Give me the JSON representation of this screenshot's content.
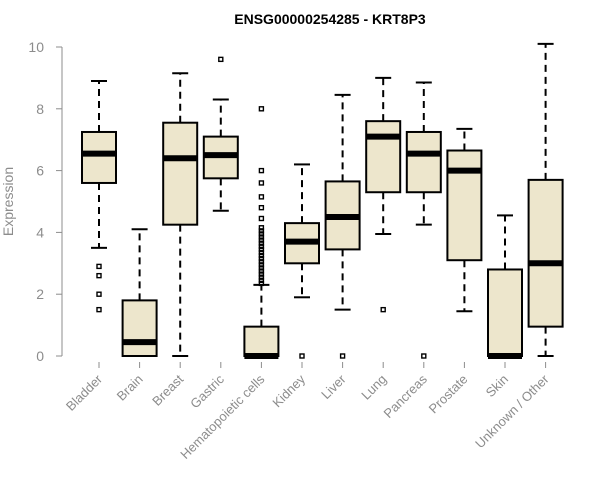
{
  "chart_data": {
    "type": "boxplot",
    "title": "ENSG00000254285 - KRT8P3",
    "ylabel": "Expression",
    "xlabel": "",
    "ylim": [
      0,
      10
    ],
    "yticks": [
      0,
      2,
      4,
      6,
      8,
      10
    ],
    "grid": false,
    "box_color": "#ede6cc",
    "axis_color": "#8c8c8c",
    "categories": [
      "Bladder",
      "Brain",
      "Breast",
      "Gastric",
      "Hematopoietic cells",
      "Kidney",
      "Liver",
      "Lung",
      "Pancreas",
      "Prostate",
      "Skin",
      "Unknown / Other"
    ],
    "boxes": [
      {
        "category": "Bladder",
        "whisker_low": 3.5,
        "q1": 5.6,
        "median": 6.55,
        "q3": 7.25,
        "whisker_high": 8.9,
        "outliers": [
          1.5,
          2.0,
          2.6,
          2.9
        ]
      },
      {
        "category": "Brain",
        "whisker_low": 0.0,
        "q1": 0.0,
        "median": 0.45,
        "q3": 1.8,
        "whisker_high": 4.1,
        "outliers": []
      },
      {
        "category": "Breast",
        "whisker_low": 0.0,
        "q1": 4.25,
        "median": 6.4,
        "q3": 7.55,
        "whisker_high": 9.15,
        "outliers": []
      },
      {
        "category": "Gastric",
        "whisker_low": 4.7,
        "q1": 5.75,
        "median": 6.5,
        "q3": 7.1,
        "whisker_high": 8.3,
        "outliers": [
          9.6
        ]
      },
      {
        "category": "Hematopoietic cells",
        "whisker_low": 0.0,
        "q1": 0.0,
        "median": 0.0,
        "q3": 0.95,
        "whisker_high": 2.3,
        "outliers": [
          2.35,
          2.45,
          2.55,
          2.65,
          2.75,
          2.85,
          2.95,
          3.05,
          3.15,
          3.25,
          3.35,
          3.45,
          3.55,
          3.65,
          3.75,
          3.85,
          3.95,
          4.05,
          4.15,
          4.45,
          4.8,
          5.15,
          5.6,
          6.0,
          8.0
        ]
      },
      {
        "category": "Kidney",
        "whisker_low": 1.9,
        "q1": 3.0,
        "median": 3.7,
        "q3": 4.3,
        "whisker_high": 6.2,
        "outliers": [
          0.0
        ]
      },
      {
        "category": "Liver",
        "whisker_low": 1.5,
        "q1": 3.45,
        "median": 4.5,
        "q3": 5.65,
        "whisker_high": 8.45,
        "outliers": [
          0.0
        ]
      },
      {
        "category": "Lung",
        "whisker_low": 3.95,
        "q1": 5.3,
        "median": 7.1,
        "q3": 7.6,
        "whisker_high": 9.0,
        "outliers": [
          1.5
        ]
      },
      {
        "category": "Pancreas",
        "whisker_low": 4.25,
        "q1": 5.3,
        "median": 6.55,
        "q3": 7.25,
        "whisker_high": 8.85,
        "outliers": [
          0.0
        ]
      },
      {
        "category": "Prostate",
        "whisker_low": 1.45,
        "q1": 3.1,
        "median": 6.0,
        "q3": 6.65,
        "whisker_high": 7.35,
        "outliers": []
      },
      {
        "category": "Skin",
        "whisker_low": 0.0,
        "q1": 0.0,
        "median": 0.0,
        "q3": 2.8,
        "whisker_high": 4.55,
        "outliers": []
      },
      {
        "category": "Unknown / Other",
        "whisker_low": 0.0,
        "q1": 0.95,
        "median": 3.0,
        "q3": 5.7,
        "whisker_high": 10.1,
        "outliers": []
      }
    ]
  }
}
